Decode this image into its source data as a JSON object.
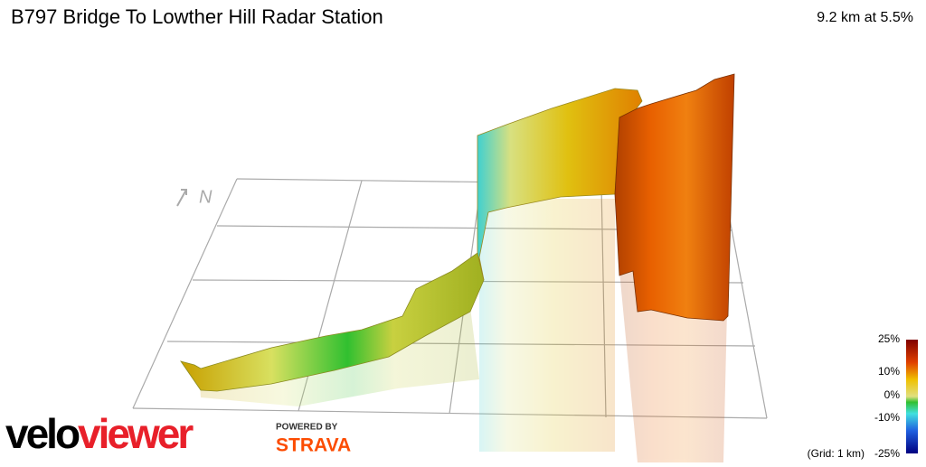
{
  "header": {
    "title": "B797 Bridge To Lowther Hill Radar Station",
    "summary": "9.2 km at 5.5%"
  },
  "compass": "N",
  "legend": {
    "ticks": [
      "25%",
      "10%",
      "0%",
      "-10%",
      "-25%"
    ],
    "grid_note": "(Grid: 1 km)"
  },
  "branding": {
    "logo_prefix": "velo",
    "logo_suffix": "viewer",
    "powered_by": "POWERED BY",
    "partner": "STRAVA"
  }
}
